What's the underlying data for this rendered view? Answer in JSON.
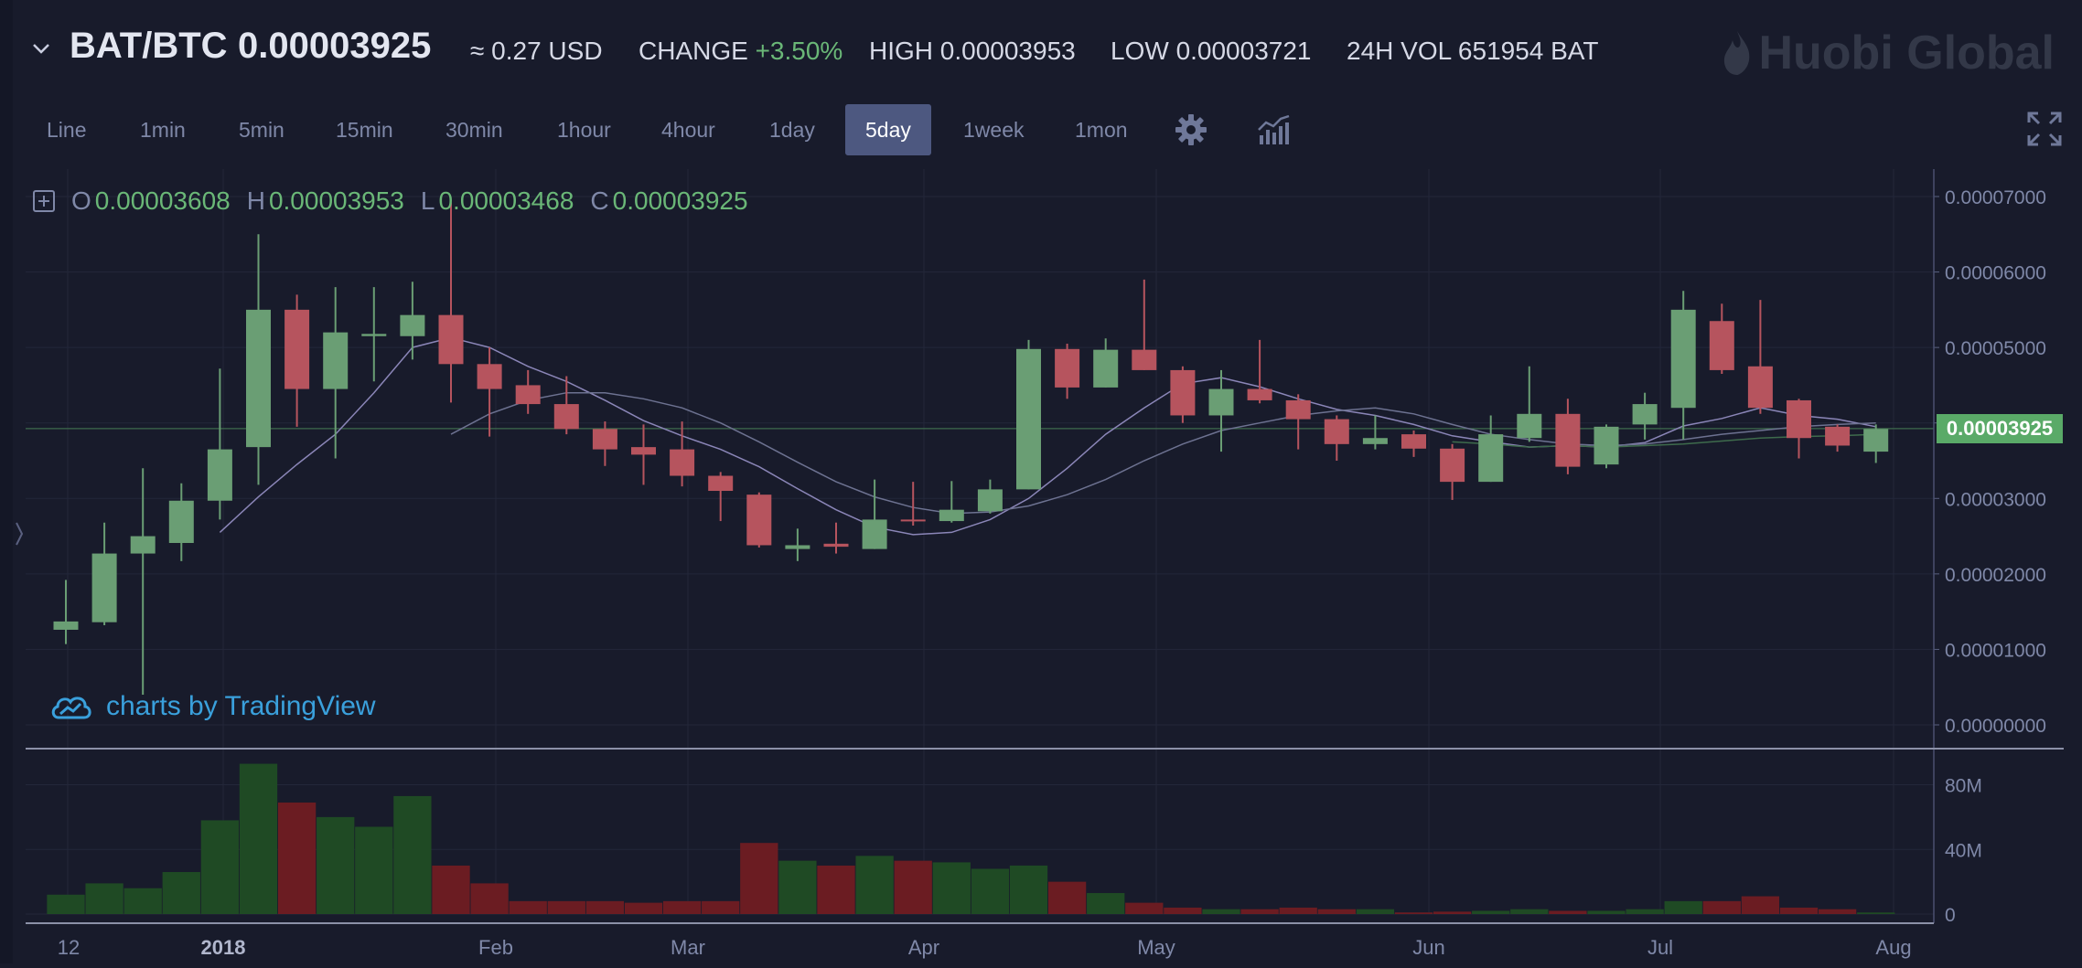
{
  "header": {
    "pair": "BAT/BTC",
    "price": "0.00003925",
    "usd": "≈ 0.27 USD",
    "change_label": "CHANGE",
    "change_value": "+3.50%",
    "high_label": "HIGH",
    "high_value": "0.00003953",
    "low_label": "LOW",
    "low_value": "0.00003721",
    "vol_label": "24H VOL",
    "vol_value": "651954 BAT",
    "brand": "Huobi Global"
  },
  "toolbar": {
    "timeframes": [
      "Line",
      "1min",
      "5min",
      "15min",
      "30min",
      "1hour",
      "4hour",
      "1day",
      "5day",
      "1week",
      "1mon"
    ],
    "active": "5day",
    "settings_icon": "gear-icon",
    "indicators_icon": "indicators-icon",
    "fullscreen_icon": "fullscreen-icon"
  },
  "ohlc": {
    "o_label": "O",
    "o_value": "0.00003608",
    "h_label": "H",
    "h_value": "0.00003953",
    "l_label": "L",
    "l_value": "0.00003468",
    "c_label": "C",
    "c_value": "0.00003925"
  },
  "watermark": "charts by TradingView",
  "colors": {
    "up": "#6a9e74",
    "down": "#b6545e",
    "vol_up": "#1f4a24",
    "vol_down": "#6b1c22",
    "background": "#181b2b"
  },
  "chart_data": {
    "type": "candlestick",
    "title": "BAT/BTC",
    "interval": "5day",
    "x_ticks": [
      "12",
      "2018",
      "Feb",
      "Mar",
      "Apr",
      "May",
      "Jun",
      "Jul",
      "Aug"
    ],
    "y_ticks": [
      "0.00007000",
      "0.00006000",
      "0.00005000",
      "0.00004000",
      "0.00003000",
      "0.00002000",
      "0.00001000",
      "0.00000000"
    ],
    "y_range": [
      0,
      7e-05
    ],
    "volume_ticks": [
      "80M",
      "40M",
      "0"
    ],
    "volume_range": [
      0,
      95000000
    ],
    "last_price": "0.00003925",
    "candles": [
      {
        "o": 1.26e-05,
        "c": 1.37e-05,
        "h": 1.92e-05,
        "l": 1.07e-05,
        "v": 12000000
      },
      {
        "o": 1.36e-05,
        "c": 2.27e-05,
        "h": 2.68e-05,
        "l": 1.32e-05,
        "v": 19000000
      },
      {
        "o": 2.27e-05,
        "c": 2.5e-05,
        "h": 3.4e-05,
        "l": 4e-06,
        "v": 16000000
      },
      {
        "o": 2.41e-05,
        "c": 2.97e-05,
        "h": 3.2e-05,
        "l": 2.17e-05,
        "v": 26000000
      },
      {
        "o": 2.97e-05,
        "c": 3.65e-05,
        "h": 4.72e-05,
        "l": 2.72e-05,
        "v": 58000000
      },
      {
        "o": 3.68e-05,
        "c": 5.5e-05,
        "h": 6.5e-05,
        "l": 3.18e-05,
        "v": 93000000
      },
      {
        "o": 5.5e-05,
        "c": 4.45e-05,
        "h": 5.7e-05,
        "l": 3.95e-05,
        "v": 69000000
      },
      {
        "o": 4.45e-05,
        "c": 5.2e-05,
        "h": 5.8e-05,
        "l": 3.53e-05,
        "v": 60000000
      },
      {
        "o": 5.15e-05,
        "c": 5.18e-05,
        "h": 5.8e-05,
        "l": 4.55e-05,
        "v": 54000000
      },
      {
        "o": 5.15e-05,
        "c": 5.43e-05,
        "h": 5.87e-05,
        "l": 4.84e-05,
        "v": 73000000
      },
      {
        "o": 5.43e-05,
        "c": 4.78e-05,
        "h": 6.92e-05,
        "l": 4.27e-05,
        "v": 30000000
      },
      {
        "o": 4.78e-05,
        "c": 4.45e-05,
        "h": 5e-05,
        "l": 3.82e-05,
        "v": 19000000
      },
      {
        "o": 4.5e-05,
        "c": 4.25e-05,
        "h": 4.7e-05,
        "l": 4.12e-05,
        "v": 8000000
      },
      {
        "o": 4.25e-05,
        "c": 3.92e-05,
        "h": 4.62e-05,
        "l": 3.85e-05,
        "v": 8000000
      },
      {
        "o": 3.92e-05,
        "c": 3.65e-05,
        "h": 4.02e-05,
        "l": 3.43e-05,
        "v": 8000000
      },
      {
        "o": 3.68e-05,
        "c": 3.58e-05,
        "h": 3.98e-05,
        "l": 3.18e-05,
        "v": 7000000
      },
      {
        "o": 3.65e-05,
        "c": 3.3e-05,
        "h": 4.02e-05,
        "l": 3.16e-05,
        "v": 8000000
      },
      {
        "o": 3.3e-05,
        "c": 3.1e-05,
        "h": 3.35e-05,
        "l": 2.7e-05,
        "v": 8000000
      },
      {
        "o": 3.05e-05,
        "c": 2.38e-05,
        "h": 3.08e-05,
        "l": 2.35e-05,
        "v": 44000000
      },
      {
        "o": 2.33e-05,
        "c": 2.38e-05,
        "h": 2.6e-05,
        "l": 2.17e-05,
        "v": 33000000
      },
      {
        "o": 2.4e-05,
        "c": 2.36e-05,
        "h": 2.68e-05,
        "l": 2.27e-05,
        "v": 30000000
      },
      {
        "o": 2.33e-05,
        "c": 2.72e-05,
        "h": 3.25e-05,
        "l": 2.33e-05,
        "v": 36000000
      },
      {
        "o": 2.72e-05,
        "c": 2.7e-05,
        "h": 3.22e-05,
        "l": 2.64e-05,
        "v": 33000000
      },
      {
        "o": 2.7e-05,
        "c": 2.85e-05,
        "h": 3.23e-05,
        "l": 2.68e-05,
        "v": 32000000
      },
      {
        "o": 2.83e-05,
        "c": 3.12e-05,
        "h": 3.25e-05,
        "l": 2.8e-05,
        "v": 28000000
      },
      {
        "o": 3.12e-05,
        "c": 4.98e-05,
        "h": 5.1e-05,
        "l": 3.12e-05,
        "v": 30000000
      },
      {
        "o": 4.98e-05,
        "c": 4.47e-05,
        "h": 5.05e-05,
        "l": 4.32e-05,
        "v": 20000000
      },
      {
        "o": 4.47e-05,
        "c": 4.97e-05,
        "h": 5.12e-05,
        "l": 4.47e-05,
        "v": 13000000
      },
      {
        "o": 4.97e-05,
        "c": 4.7e-05,
        "h": 5.9e-05,
        "l": 4.7e-05,
        "v": 7000000
      },
      {
        "o": 4.7e-05,
        "c": 4.1e-05,
        "h": 4.75e-05,
        "l": 4e-05,
        "v": 4000000
      },
      {
        "o": 4.1e-05,
        "c": 4.45e-05,
        "h": 4.7e-05,
        "l": 3.62e-05,
        "v": 3000000
      },
      {
        "o": 4.45e-05,
        "c": 4.3e-05,
        "h": 5.1e-05,
        "l": 4.26e-05,
        "v": 3000000
      },
      {
        "o": 4.3e-05,
        "c": 4.05e-05,
        "h": 4.38e-05,
        "l": 3.65e-05,
        "v": 4000000
      },
      {
        "o": 4.05e-05,
        "c": 3.72e-05,
        "h": 4.1e-05,
        "l": 3.5e-05,
        "v": 3000000
      },
      {
        "o": 3.72e-05,
        "c": 3.8e-05,
        "h": 4.1e-05,
        "l": 3.65e-05,
        "v": 3000000
      },
      {
        "o": 3.85e-05,
        "c": 3.66e-05,
        "h": 3.9e-05,
        "l": 3.55e-05,
        "v": 1000000
      },
      {
        "o": 3.66e-05,
        "c": 3.22e-05,
        "h": 3.72e-05,
        "l": 2.98e-05,
        "v": 1500000
      },
      {
        "o": 3.22e-05,
        "c": 3.85e-05,
        "h": 4.1e-05,
        "l": 3.22e-05,
        "v": 2000000
      },
      {
        "o": 3.8e-05,
        "c": 4.12e-05,
        "h": 4.75e-05,
        "l": 3.75e-05,
        "v": 3000000
      },
      {
        "o": 4.12e-05,
        "c": 3.42e-05,
        "h": 4.32e-05,
        "l": 3.32e-05,
        "v": 2000000
      },
      {
        "o": 3.45e-05,
        "c": 3.95e-05,
        "h": 3.98e-05,
        "l": 3.4e-05,
        "v": 2000000
      },
      {
        "o": 3.98e-05,
        "c": 4.25e-05,
        "h": 4.4e-05,
        "l": 3.78e-05,
        "v": 3000000
      },
      {
        "o": 4.2e-05,
        "c": 5.5e-05,
        "h": 5.75e-05,
        "l": 3.78e-05,
        "v": 8000000
      },
      {
        "o": 5.35e-05,
        "c": 4.7e-05,
        "h": 5.58e-05,
        "l": 4.65e-05,
        "v": 8000000
      },
      {
        "o": 4.75e-05,
        "c": 4.2e-05,
        "h": 5.63e-05,
        "l": 4.12e-05,
        "v": 11000000
      },
      {
        "o": 4.3e-05,
        "c": 3.8e-05,
        "h": 4.32e-05,
        "l": 3.53e-05,
        "v": 4000000
      },
      {
        "o": 3.95e-05,
        "c": 3.7e-05,
        "h": 3.98e-05,
        "l": 3.62e-05,
        "v": 3000000
      },
      {
        "o": 3.62e-05,
        "c": 3.92e-05,
        "h": 3.98e-05,
        "l": 3.47e-05,
        "v": 1000000
      }
    ],
    "ma_lines": [
      {
        "color": "#8b86b8",
        "values": [
          null,
          null,
          null,
          null,
          2.55e-05,
          3.02e-05,
          3.45e-05,
          3.85e-05,
          4.4e-05,
          5e-05,
          5.13e-05,
          5e-05,
          4.75e-05,
          4.55e-05,
          4.3e-05,
          4.03e-05,
          3.83e-05,
          3.65e-05,
          3.42e-05,
          3.13e-05,
          2.85e-05,
          2.62e-05,
          2.52e-05,
          2.55e-05,
          2.72e-05,
          3e-05,
          3.4e-05,
          3.85e-05,
          4.2e-05,
          4.52e-05,
          4.6e-05,
          4.48e-05,
          4.32e-05,
          4.18e-05,
          4.1e-05,
          3.98e-05,
          3.83e-05,
          3.75e-05,
          3.68e-05,
          3.7e-05,
          3.68e-05,
          3.74e-05,
          3.96e-05,
          4.06e-05,
          4.2e-05,
          4.1e-05,
          4.05e-05,
          3.95e-05
        ]
      },
      {
        "color": "#6d7291",
        "values": [
          null,
          null,
          null,
          null,
          null,
          null,
          null,
          null,
          null,
          null,
          3.85e-05,
          4.12e-05,
          4.3e-05,
          4.4e-05,
          4.4e-05,
          4.32e-05,
          4.2e-05,
          4e-05,
          3.75e-05,
          3.48e-05,
          3.22e-05,
          3.02e-05,
          2.88e-05,
          2.8e-05,
          2.82e-05,
          2.9e-05,
          3.05e-05,
          3.25e-05,
          3.5e-05,
          3.72e-05,
          3.9e-05,
          4e-05,
          4.1e-05,
          4.16e-05,
          4.2e-05,
          4.12e-05,
          3.98e-05,
          3.85e-05,
          3.78e-05,
          3.72e-05,
          3.7e-05,
          3.72e-05,
          3.78e-05,
          3.85e-05,
          3.9e-05,
          3.95e-05,
          3.98e-05,
          4e-05
        ]
      },
      {
        "color": "#3e6b4c",
        "values": [
          null,
          null,
          null,
          null,
          null,
          null,
          null,
          null,
          null,
          null,
          null,
          null,
          null,
          null,
          null,
          null,
          null,
          null,
          null,
          null,
          null,
          null,
          null,
          null,
          null,
          null,
          null,
          null,
          null,
          null,
          null,
          null,
          null,
          null,
          null,
          null,
          3.75e-05,
          3.72e-05,
          3.68e-05,
          3.7e-05,
          3.68e-05,
          3.7e-05,
          3.72e-05,
          3.76e-05,
          3.8e-05,
          3.82e-05,
          3.83e-05,
          3.85e-05
        ]
      }
    ]
  }
}
